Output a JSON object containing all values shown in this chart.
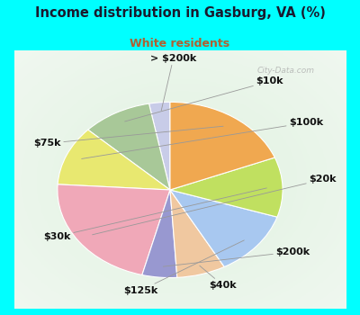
{
  "title": "Income distribution in Gasburg, VA (%)",
  "subtitle": "White residents",
  "title_color": "#1a1a2e",
  "subtitle_color": "#b06030",
  "bg_cyan": "#00ffff",
  "bg_inner": "#e0f0e8",
  "labels": [
    "> $200k",
    "$10k",
    "$100k",
    "$20k",
    "$200k",
    "$40k",
    "$125k",
    "$30k",
    "$75k"
  ],
  "values": [
    3,
    10,
    11,
    22,
    5,
    7,
    12,
    11,
    19
  ],
  "colors": [
    "#c8cce8",
    "#a8c898",
    "#e8e870",
    "#f0a8b8",
    "#9898d0",
    "#f0c8a0",
    "#a8c8f0",
    "#c0e060",
    "#f0a850"
  ],
  "startangle": 90,
  "wedge_edgecolor": "#ffffff",
  "label_fontsize": 8,
  "watermark": "City-Data.com"
}
